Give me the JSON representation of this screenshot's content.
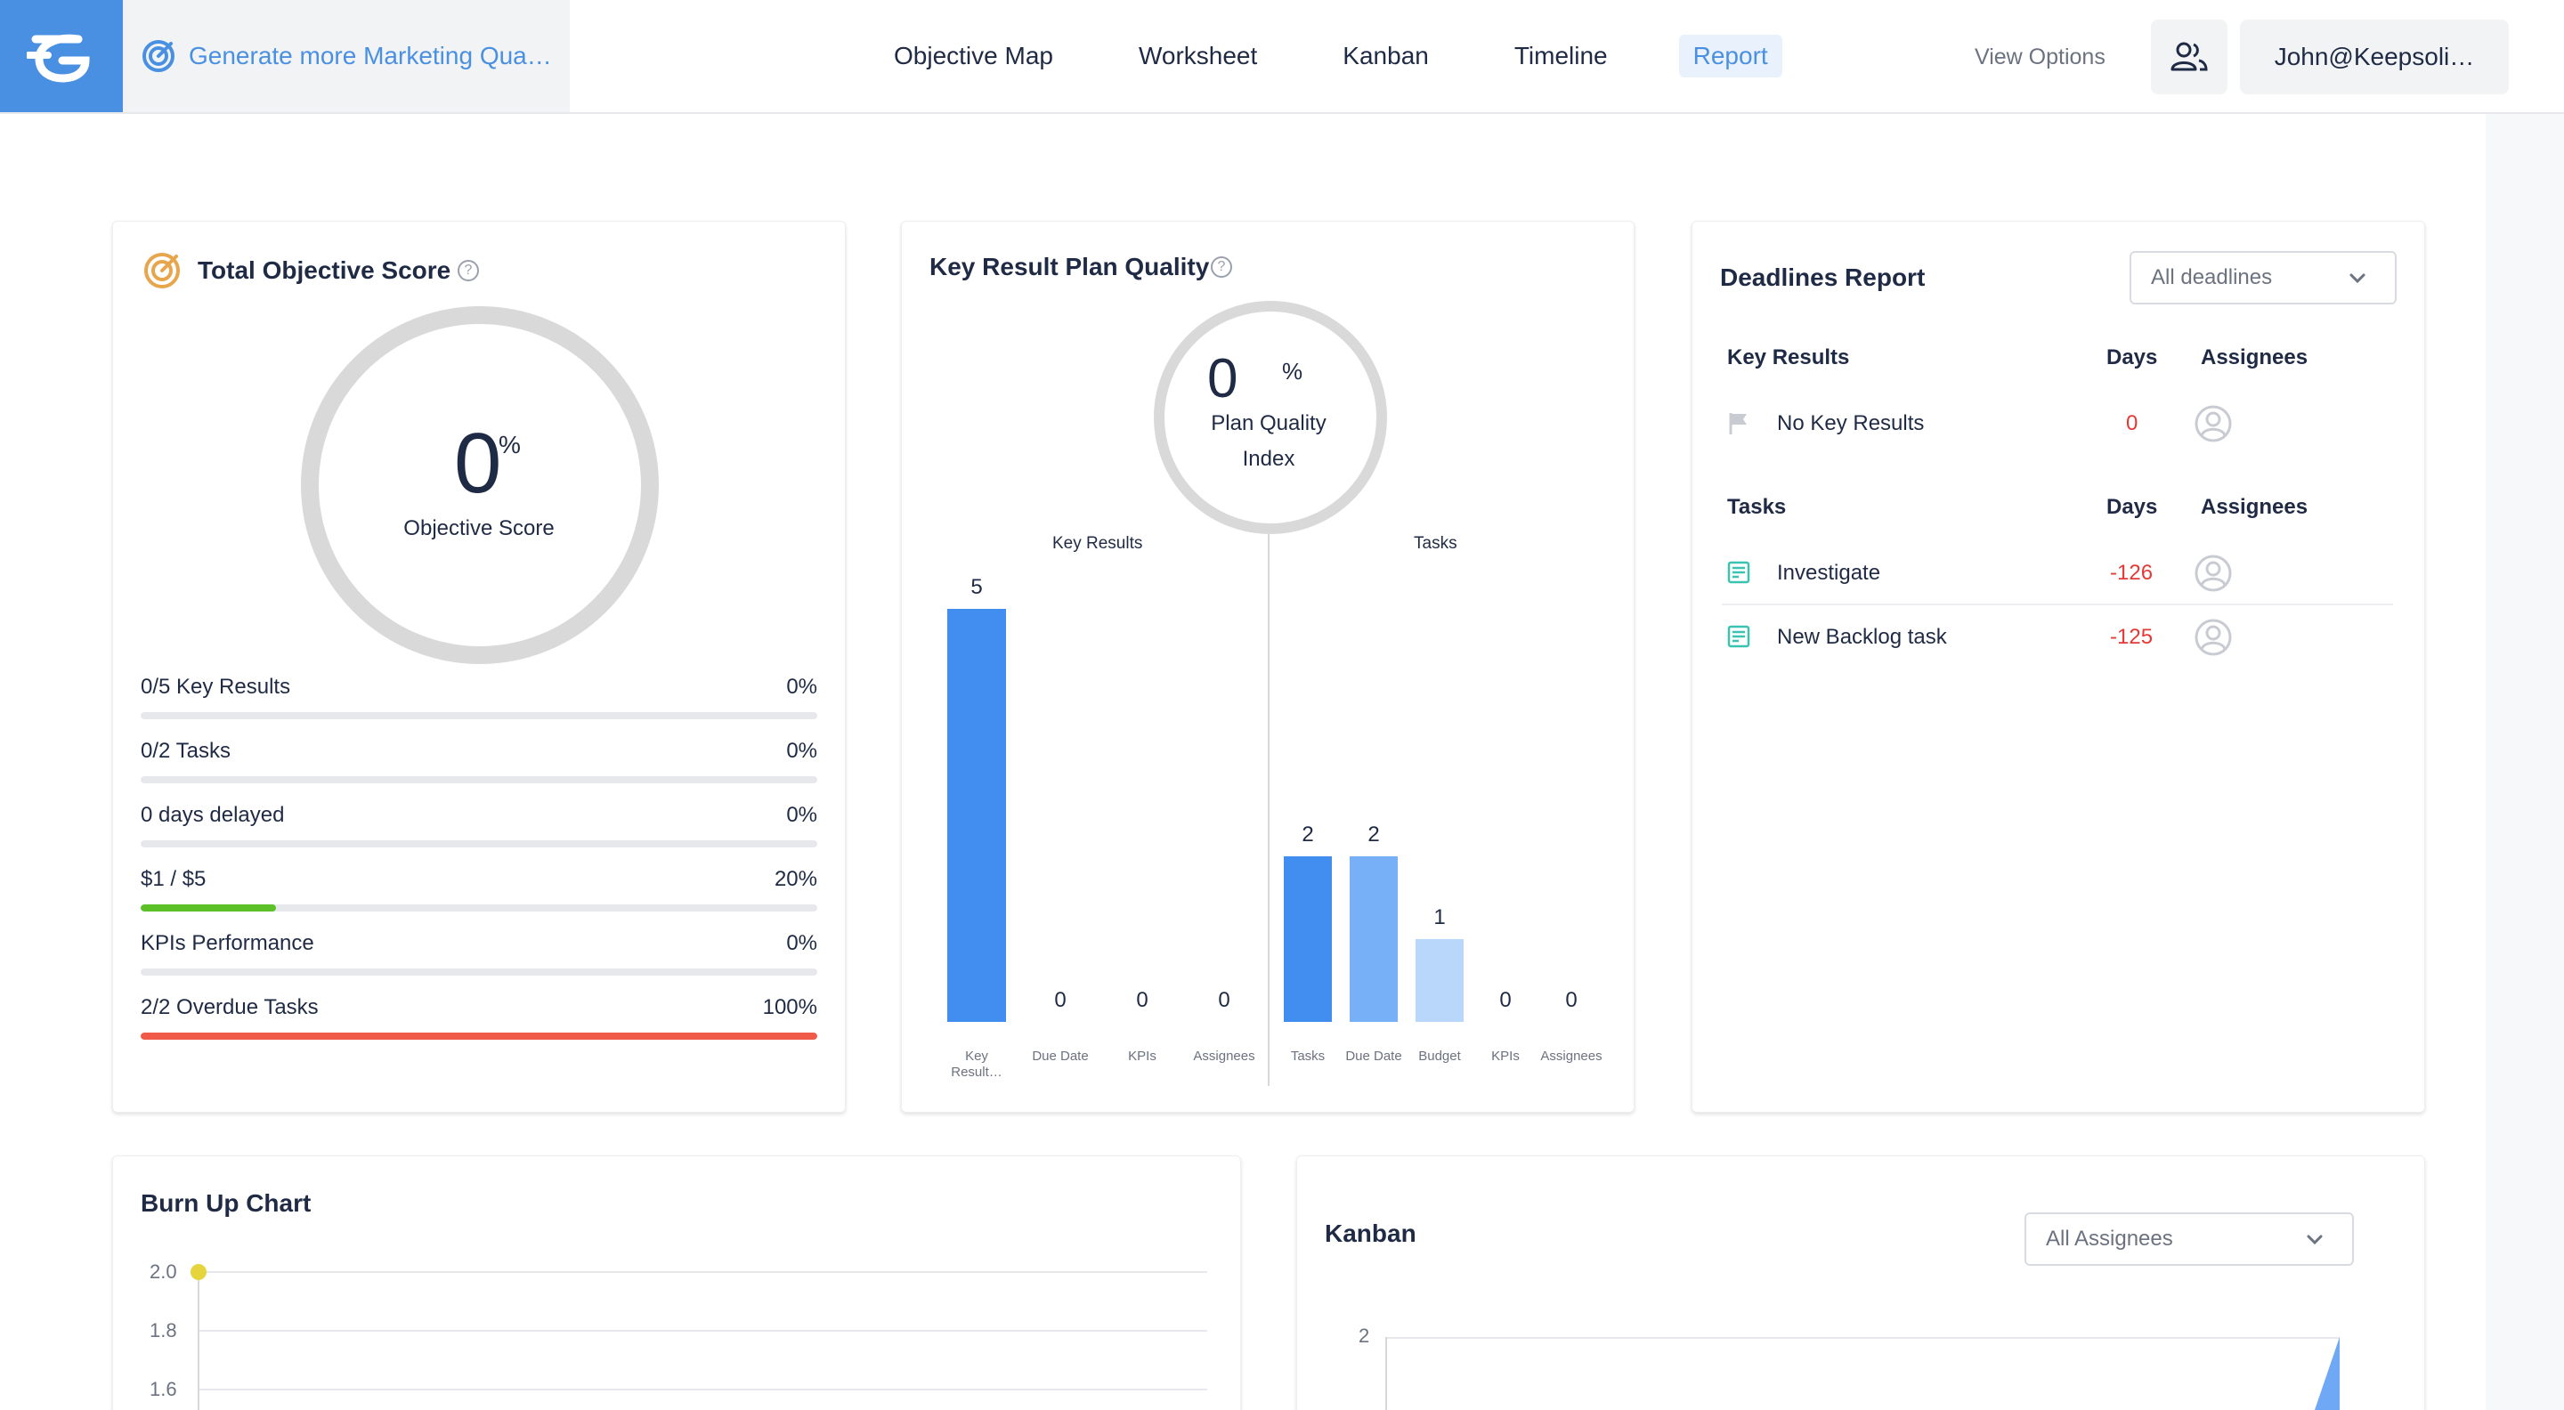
{
  "header": {
    "objective_title": "Generate more Marketing Qua…",
    "tabs": [
      {
        "label": "Objective Map",
        "active": false
      },
      {
        "label": "Worksheet",
        "active": false
      },
      {
        "label": "Kanban",
        "active": false
      },
      {
        "label": "Timeline",
        "active": false
      },
      {
        "label": "Report",
        "active": true
      }
    ],
    "view_options": "View Options",
    "user": "John@Keepsoli…"
  },
  "score_card": {
    "title": "Total Objective Score",
    "value": "0",
    "pct": "%",
    "label": "Objective Score",
    "metrics": [
      {
        "label": "0/5 Key Results",
        "value": "0%",
        "fraction": 0,
        "color": "#e6e8ec"
      },
      {
        "label": "0/2 Tasks",
        "value": "0%",
        "fraction": 0,
        "color": "#e6e8ec"
      },
      {
        "label": "0 days delayed",
        "value": "0%",
        "fraction": 0,
        "color": "#e6e8ec"
      },
      {
        "label": "$1 / $5",
        "value": "20%",
        "fraction": 0.2,
        "color": "#5cc129"
      },
      {
        "label": "KPIs Performance",
        "value": "0%",
        "fraction": 0,
        "color": "#e6e8ec"
      },
      {
        "label": "2/2 Overdue Tasks",
        "value": "100%",
        "fraction": 1,
        "color": "#ef5a49"
      }
    ]
  },
  "quality_card": {
    "title": "Key Result Plan Quality",
    "value": "0",
    "pct": "%",
    "label_line1": "Plan Quality",
    "label_line2": "Index",
    "group_key_results": "Key Results",
    "group_tasks": "Tasks"
  },
  "chart_data": {
    "type": "bar",
    "groups": [
      {
        "name": "Key Results",
        "categories": [
          "Key Result…",
          "Due Date",
          "KPIs",
          "Assignees"
        ],
        "values": [
          5,
          0,
          0,
          0
        ],
        "colors": [
          "#428ef0",
          "#428ef0",
          "#428ef0",
          "#428ef0"
        ]
      },
      {
        "name": "Tasks",
        "categories": [
          "Tasks",
          "Due Date",
          "Budget",
          "KPIs",
          "Assignees"
        ],
        "values": [
          2,
          2,
          1,
          0,
          0
        ],
        "colors": [
          "#428ef0",
          "#77b0f7",
          "#b8d7fb",
          "#428ef0",
          "#428ef0"
        ]
      }
    ]
  },
  "deadlines": {
    "title": "Deadlines Report",
    "filter": "All deadlines",
    "kr_header": {
      "col1": "Key Results",
      "col2": "Days",
      "col3": "Assignees"
    },
    "kr_rows": [
      {
        "name": "No Key Results",
        "days": "0"
      }
    ],
    "task_header": {
      "col1": "Tasks",
      "col2": "Days",
      "col3": "Assignees"
    },
    "task_rows": [
      {
        "name": "Investigate",
        "days": "-126"
      },
      {
        "name": "New Backlog task",
        "days": "-125"
      }
    ]
  },
  "burnup": {
    "title": "Burn Up Chart",
    "y_ticks": [
      "2.0",
      "1.8",
      "1.6"
    ]
  },
  "kanban": {
    "title": "Kanban",
    "filter": "All Assignees",
    "y_ticks": [
      "2"
    ]
  },
  "colors": {
    "accent": "#4a90e2",
    "bar_dark": "#428ef0",
    "green": "#5cc129",
    "red": "#ef5a49",
    "target_orange": "#e7a54c"
  }
}
